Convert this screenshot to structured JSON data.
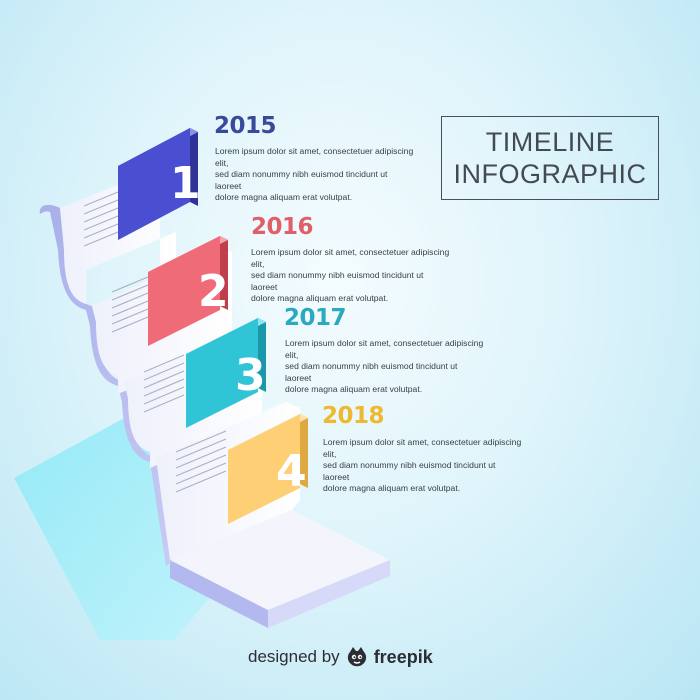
{
  "title": {
    "line1": "TIMELINE",
    "line2": "INFOGRAPHIC"
  },
  "steps": [
    {
      "number": "1",
      "year": "2015",
      "color": "#4a4ed0",
      "year_color": "#3a4a9a",
      "text_lines": [
        "Lorem ipsum dolor sit amet, consectetuer adipiscing elit,",
        "sed diam nonummy nibh euismod tincidunt ut laoreet",
        "dolore magna aliquam erat volutpat."
      ]
    },
    {
      "number": "2",
      "year": "2016",
      "color": "#ef6b78",
      "year_color": "#e0606a",
      "text_lines": [
        "Lorem ipsum dolor sit amet, consectetuer adipiscing elit,",
        "sed diam nonummy nibh euismod tincidunt ut laoreet",
        "dolore magna aliquam erat volutpat."
      ]
    },
    {
      "number": "3",
      "year": "2017",
      "color": "#2fc4d6",
      "year_color": "#2aa9bf",
      "text_lines": [
        "Lorem ipsum dolor sit amet, consectetuer adipiscing elit,",
        "sed diam nonummy nibh euismod tincidunt ut laoreet",
        "dolore magna aliquam erat volutpat."
      ]
    },
    {
      "number": "4",
      "year": "2018",
      "color": "#ffcf75",
      "year_color": "#eeb830",
      "text_lines": [
        "Lorem ipsum dolor sit amet, consectetuer adipiscing elit,",
        "sed diam nonummy nibh euismod tincidunt ut laoreet",
        "dolore magna aliquam erat volutpat."
      ]
    }
  ],
  "credit": {
    "prefix": "designed by",
    "brand": "freepik",
    "logo_icon": "freepik-logo-icon"
  }
}
